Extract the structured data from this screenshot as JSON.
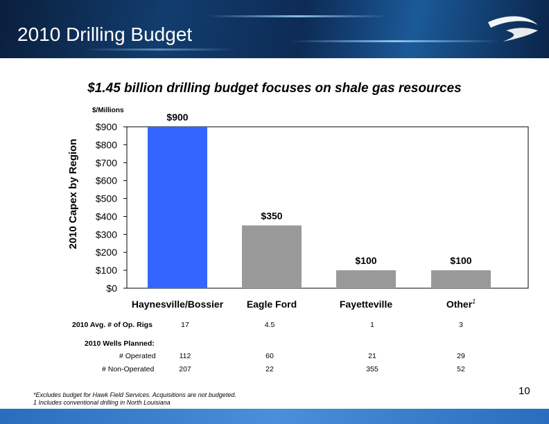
{
  "header": {
    "title": "2010 Drilling Budget"
  },
  "subtitle": "$1.45 billion drilling budget focuses on shale gas resources",
  "chart_data": {
    "type": "bar",
    "title": "",
    "unit_label": "$/Millions",
    "ylabel": "2010 Capex by Region",
    "xlabel": "",
    "categories": [
      "Haynesville/Bossier",
      "Eagle Ford",
      "Fayetteville",
      "Other"
    ],
    "category_superscripts": [
      "",
      "",
      "",
      "1"
    ],
    "values": [
      900,
      350,
      100,
      100
    ],
    "data_labels": [
      "$900",
      "$350",
      "$100",
      "$100"
    ],
    "bar_colors": [
      "#3366ff",
      "#999999",
      "#999999",
      "#999999"
    ],
    "ylim": [
      0,
      900
    ],
    "yticks": [
      0,
      100,
      200,
      300,
      400,
      500,
      600,
      700,
      800,
      900
    ],
    "ytick_labels": [
      "$0",
      "$100",
      "$200",
      "$300",
      "$400",
      "$500",
      "$600",
      "$700",
      "$800",
      "$900"
    ],
    "grid": false,
    "legend": "none"
  },
  "table": {
    "rigs_label": "2010 Avg. # of Op. Rigs",
    "rigs": [
      "17",
      "4.5",
      "1",
      "3"
    ],
    "wells_label": "2010 Wells Planned:",
    "operated_label": "# Operated",
    "operated": [
      "112",
      "60",
      "21",
      "29"
    ],
    "nonop_label": "# Non-Operated",
    "nonop": [
      "207",
      "22",
      "355",
      "52"
    ]
  },
  "footnotes": {
    "line1": "*Excludes budget for Hawk Field Services. Acquisitions are not budgeted.",
    "line2": "1 Includes conventional drilling in North Louisiana"
  },
  "page_number": "10",
  "colors": {
    "header_dark": "#0d2b55",
    "header_light": "#1b5a99",
    "accent_bar": "#3366ff",
    "gray_bar": "#999999",
    "bottom_bar": "#2a6dbe"
  },
  "icons": {
    "logo": "swoosh-logo-icon"
  }
}
